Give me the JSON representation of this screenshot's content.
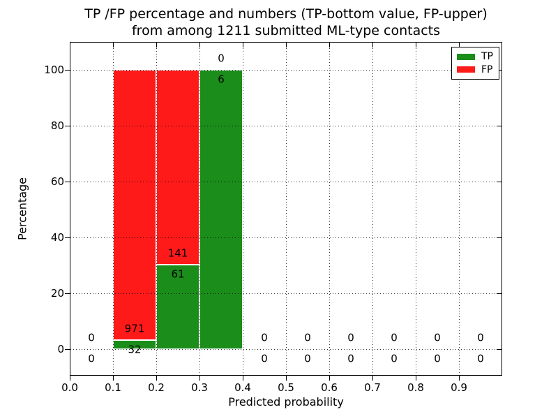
{
  "figure": {
    "background": "#ffffff"
  },
  "chart_data": {
    "type": "bar",
    "stacked": "percent",
    "title": "TP /FP percentage and numbers (TP-bottom value, FP-upper)\nfrom among 1211 submitted ML-type contacts",
    "xlabel": "Predicted probability",
    "ylabel": "Percentage",
    "xlim": [
      0.0,
      1.0
    ],
    "ylim": [
      -10,
      110
    ],
    "grid": true,
    "xticks": [
      {
        "value": 0.0,
        "label": "0.0"
      },
      {
        "value": 0.1,
        "label": "0.1"
      },
      {
        "value": 0.2,
        "label": "0.2"
      },
      {
        "value": 0.3,
        "label": "0.3"
      },
      {
        "value": 0.4,
        "label": "0.4"
      },
      {
        "value": 0.5,
        "label": "0.5"
      },
      {
        "value": 0.6,
        "label": "0.6"
      },
      {
        "value": 0.7,
        "label": "0.7"
      },
      {
        "value": 0.8,
        "label": "0.8"
      },
      {
        "value": 0.9,
        "label": "0.9"
      }
    ],
    "yticks": [
      {
        "value": 0,
        "label": "0"
      },
      {
        "value": 20,
        "label": "20"
      },
      {
        "value": 40,
        "label": "40"
      },
      {
        "value": 60,
        "label": "60"
      },
      {
        "value": 80,
        "label": "80"
      },
      {
        "value": 100,
        "label": "100"
      }
    ],
    "colors": {
      "tp": "#1a8d1a",
      "fp": "#ff1a1a",
      "bar_edge": "#ffffff"
    },
    "legend": {
      "position": "upper right",
      "entries": [
        {
          "label": "TP",
          "series": "tp"
        },
        {
          "label": "FP",
          "series": "fp"
        }
      ]
    },
    "bins": [
      {
        "range": [
          0.0,
          0.1
        ],
        "tp_count": 0,
        "fp_count": 0,
        "tp_pct": 0,
        "fp_pct": 0
      },
      {
        "range": [
          0.1,
          0.2
        ],
        "tp_count": 32,
        "fp_count": 971,
        "tp_pct": 3.19,
        "fp_pct": 96.81
      },
      {
        "range": [
          0.2,
          0.3
        ],
        "tp_count": 61,
        "fp_count": 141,
        "tp_pct": 30.2,
        "fp_pct": 69.8
      },
      {
        "range": [
          0.3,
          0.4
        ],
        "tp_count": 6,
        "fp_count": 0,
        "tp_pct": 100,
        "fp_pct": 0
      },
      {
        "range": [
          0.4,
          0.5
        ],
        "tp_count": 0,
        "fp_count": 0,
        "tp_pct": 0,
        "fp_pct": 0
      },
      {
        "range": [
          0.5,
          0.6
        ],
        "tp_count": 0,
        "fp_count": 0,
        "tp_pct": 0,
        "fp_pct": 0
      },
      {
        "range": [
          0.6,
          0.7
        ],
        "tp_count": 0,
        "fp_count": 0,
        "tp_pct": 0,
        "fp_pct": 0
      },
      {
        "range": [
          0.7,
          0.8
        ],
        "tp_count": 0,
        "fp_count": 0,
        "tp_pct": 0,
        "fp_pct": 0
      },
      {
        "range": [
          0.8,
          0.9
        ],
        "tp_count": 0,
        "fp_count": 0,
        "tp_pct": 0,
        "fp_pct": 0
      },
      {
        "range": [
          0.9,
          1.0
        ],
        "tp_count": 0,
        "fp_count": 0,
        "tp_pct": 0,
        "fp_pct": 0
      }
    ]
  }
}
